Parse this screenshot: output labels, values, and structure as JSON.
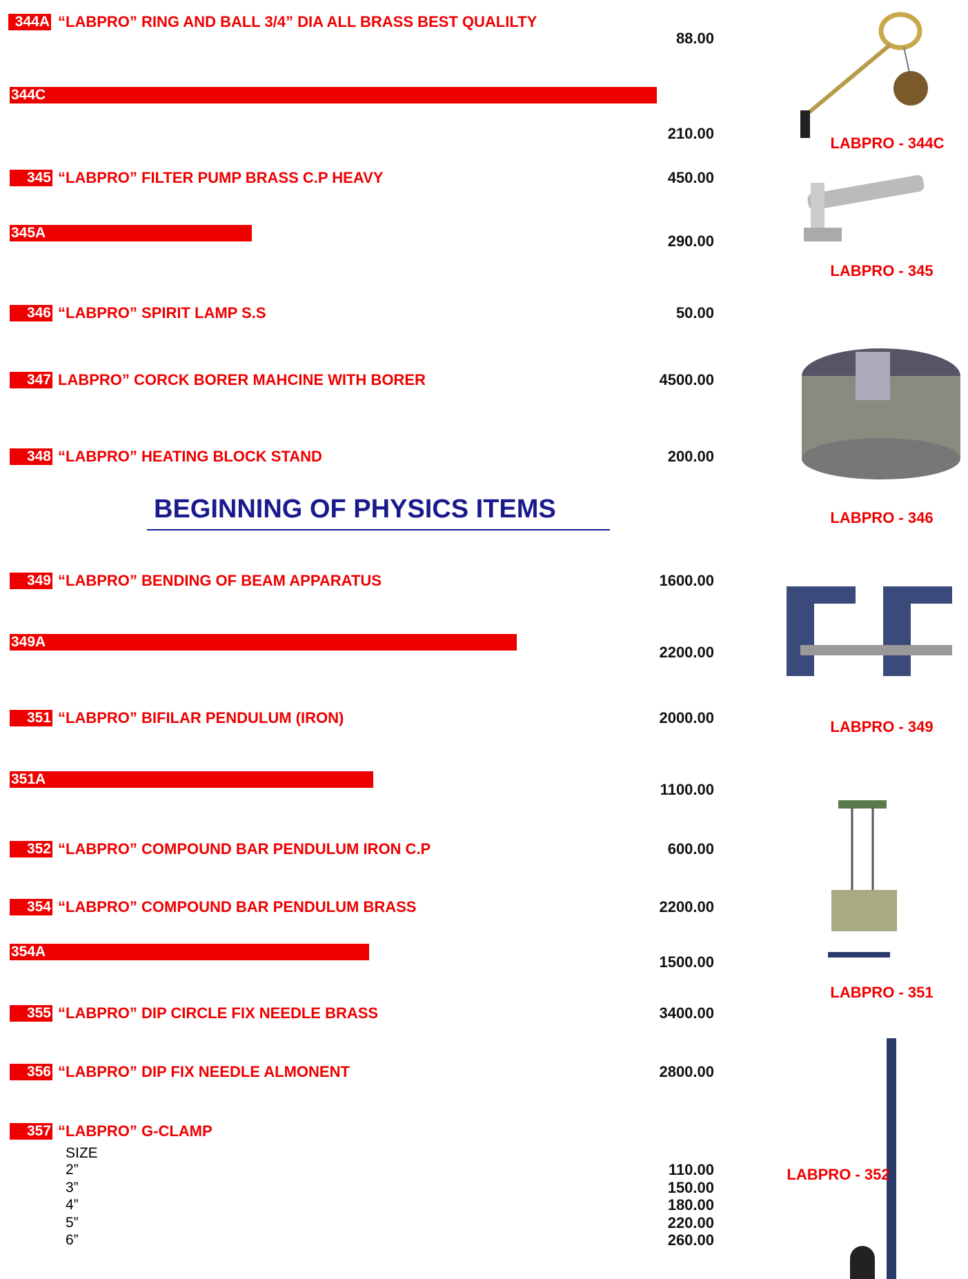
{
  "items": [
    {
      "code": "344A",
      "name": "“LABPRO” RING AND BALL 3/4” DIA ALL BRASS BEST QUALILTY",
      "price": "88.00"
    },
    {
      "code": "344C",
      "price": "210.00"
    },
    {
      "code": "345",
      "name": "“LABPRO” FILTER PUMP BRASS C.P HEAVY",
      "price": "450.00"
    },
    {
      "code": "345A",
      "price": "290.00"
    },
    {
      "code": "346",
      "name": "“LABPRO” SPIRIT LAMP S.S",
      "price": "50.00"
    },
    {
      "code": "347",
      "name": "LABPRO” CORCK BORER MAHCINE WITH BORER",
      "price": "4500.00"
    },
    {
      "code": "348",
      "name": "“LABPRO” HEATING BLOCK STAND",
      "price": "200.00"
    },
    {
      "code": "349",
      "name": "“LABPRO” BENDING OF BEAM APPARATUS",
      "price": "1600.00"
    },
    {
      "code": "349A",
      "price": "2200.00"
    },
    {
      "code": "351",
      "name": "“LABPRO” BIFILAR PENDULUM (IRON)",
      "price": "2000.00"
    },
    {
      "code": "351A",
      "price": "1100.00"
    },
    {
      "code": "352",
      "name": "“LABPRO” COMPOUND BAR PENDULUM IRON C.P",
      "price": "600.00"
    },
    {
      "code": "354",
      "name": "“LABPRO” COMPOUND BAR PENDULUM BRASS",
      "price": "2200.00"
    },
    {
      "code": "354A",
      "price": "1500.00"
    },
    {
      "code": "355",
      "name": "“LABPRO” DIP CIRCLE FIX NEEDLE BRASS",
      "price": "3400.00"
    },
    {
      "code": "356",
      "name": "“LABPRO” DIP FIX NEEDLE ALMONENT",
      "price": "2800.00"
    },
    {
      "code": "357",
      "name": "“LABPRO” G-CLAMP"
    }
  ],
  "heading": "BEGINNING OF PHYSICS ITEMS",
  "sizes": {
    "label": "SIZE",
    "rows": [
      [
        "2”",
        "110.00"
      ],
      [
        "3”",
        "150.00"
      ],
      [
        "4”",
        "180.00"
      ],
      [
        "5”",
        "220.00"
      ],
      [
        "6”",
        "260.00"
      ]
    ]
  },
  "captions": [
    "LABPRO - 344C",
    "LABPRO - 345",
    "LABPRO - 346",
    "LABPRO - 349",
    "LABPRO - 351",
    "LABPRO - 352"
  ]
}
